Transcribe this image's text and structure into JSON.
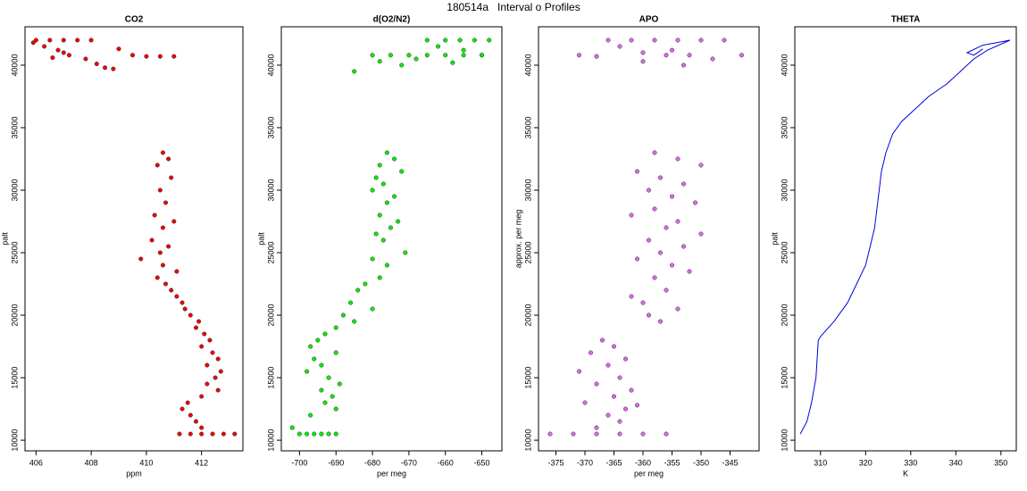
{
  "title": "180514a   Interval o Profiles",
  "chart_data": [
    {
      "type": "scatter",
      "title": "CO2",
      "xlabel": "ppm",
      "ylabel": "palt",
      "color": "#ee0000",
      "x": [
        406,
        406.5,
        407,
        407.5,
        408,
        405.9,
        406.3,
        406.8,
        407.2,
        407.8,
        408.2,
        408.5,
        408.8,
        409,
        409.5,
        410,
        410.5,
        411,
        407,
        406.6,
        410.6,
        410.8,
        410.4,
        410.9,
        410.5,
        410.7,
        410.3,
        411.0,
        410.6,
        410.2,
        410.8,
        410.5,
        409.8,
        410.6,
        411.1,
        410.4,
        410.7,
        410.9,
        411.1,
        411.3,
        411.4,
        411.6,
        411.9,
        411.8,
        412.1,
        412.3,
        412.0,
        412.4,
        412.6,
        412.2,
        412.7,
        412.5,
        412.2,
        412.6,
        412.0,
        411.5,
        411.3,
        411.6,
        411.8,
        412.0,
        411.2,
        411.6,
        412.0,
        412.4,
        412.8,
        413.2
      ],
      "y": [
        42000,
        42000,
        42000,
        42000,
        42000,
        41800,
        41500,
        41200,
        40800,
        40500,
        40100,
        39800,
        39700,
        41300,
        40800,
        40700,
        40700,
        40700,
        41000,
        40600,
        33000,
        32500,
        32000,
        31000,
        30000,
        29000,
        28000,
        27500,
        27000,
        26000,
        25500,
        25000,
        24500,
        24000,
        23500,
        23000,
        22500,
        22000,
        21500,
        21000,
        20500,
        20000,
        19500,
        19000,
        18500,
        18000,
        17500,
        17000,
        16500,
        16000,
        15500,
        15000,
        14500,
        14000,
        13500,
        13000,
        12500,
        12000,
        11500,
        11000,
        10500,
        10500,
        10500,
        10500,
        10500,
        10500
      ],
      "xlim": [
        405.6,
        413.5
      ],
      "ylim": [
        9150,
        43070
      ],
      "xticks": [
        406,
        408,
        410,
        412
      ],
      "yticks": [
        10000,
        15000,
        20000,
        25000,
        30000,
        35000,
        40000
      ]
    },
    {
      "type": "scatter",
      "title": "d(O2/N2)",
      "xlabel": "per meg",
      "ylabel": "palt",
      "color": "#00ee00",
      "x": [
        -665,
        -660,
        -656,
        -652,
        -648,
        -662,
        -655,
        -650,
        -680,
        -675,
        -670,
        -665,
        -660,
        -655,
        -650,
        -678,
        -672,
        -668,
        -658,
        -685,
        -676,
        -674,
        -678,
        -672,
        -679,
        -677,
        -680,
        -674,
        -676,
        -678,
        -673,
        -675,
        -679,
        -677,
        -671,
        -680,
        -676,
        -678,
        -682,
        -684,
        -686,
        -680,
        -688,
        -685,
        -690,
        -693,
        -695,
        -697,
        -690,
        -696,
        -694,
        -698,
        -692,
        -689,
        -694,
        -691,
        -693,
        -690,
        -697,
        -702,
        -700,
        -698,
        -696,
        -694,
        -692,
        -690
      ],
      "y": [
        42000,
        42000,
        42000,
        42000,
        42000,
        41500,
        41200,
        40800,
        40800,
        40800,
        40800,
        40800,
        40800,
        40800,
        40800,
        40300,
        40000,
        40500,
        40200,
        39500,
        33000,
        32500,
        32000,
        31500,
        31000,
        30500,
        30000,
        29500,
        29000,
        28000,
        27500,
        27000,
        26500,
        26000,
        25000,
        24500,
        24000,
        23000,
        22500,
        22000,
        21000,
        20500,
        20000,
        19500,
        19000,
        18500,
        18000,
        17500,
        17000,
        16500,
        16000,
        15500,
        15000,
        14500,
        14000,
        13500,
        13000,
        12500,
        12000,
        11000,
        10500,
        10500,
        10500,
        10500,
        10500,
        10500
      ],
      "xlim": [
        -705,
        -644.5
      ],
      "ylim": [
        9150,
        43070
      ],
      "xticks": [
        -700,
        -690,
        -680,
        -670,
        -660,
        -650
      ],
      "yticks": [
        10000,
        15000,
        20000,
        25000,
        30000,
        35000,
        40000
      ]
    },
    {
      "type": "scatter",
      "title": "APO",
      "xlabel": "per meg",
      "ylabel": "approx. per meg",
      "color": "#dd66ee",
      "x": [
        -366,
        -362,
        -358,
        -354,
        -350,
        -346,
        -364,
        -360,
        -356,
        -352,
        -348,
        -371,
        -368,
        -355,
        -360,
        -353,
        -343,
        -358,
        -354,
        -350,
        -361,
        -357,
        -353,
        -359,
        -355,
        -351,
        -358,
        -362,
        -354,
        -356,
        -350,
        -359,
        -353,
        -357,
        -361,
        -355,
        -352,
        -358,
        -356,
        -362,
        -360,
        -354,
        -359,
        -357,
        -367,
        -365,
        -369,
        -363,
        -366,
        -371,
        -364,
        -368,
        -362,
        -365,
        -370,
        -363,
        -366,
        -364,
        -368,
        -361,
        -376,
        -372,
        -368,
        -364,
        -360,
        -356
      ],
      "y": [
        42000,
        42000,
        42000,
        42000,
        42000,
        42000,
        41500,
        41000,
        40800,
        40800,
        40500,
        40800,
        40700,
        41200,
        40300,
        40000,
        40800,
        33000,
        32500,
        32000,
        31500,
        31000,
        30500,
        30000,
        29500,
        29000,
        28500,
        28000,
        27500,
        27000,
        26500,
        26000,
        25500,
        25000,
        24500,
        24000,
        23500,
        23000,
        22000,
        21500,
        21000,
        20500,
        20000,
        19500,
        18000,
        17500,
        17000,
        16500,
        16000,
        15500,
        15000,
        14500,
        14000,
        13500,
        13000,
        12500,
        12000,
        11500,
        11000,
        12800,
        10500,
        10500,
        10500,
        10500,
        10500,
        10500
      ],
      "xlim": [
        -378,
        -340
      ],
      "ylim": [
        9150,
        43070
      ],
      "xticks": [
        -375,
        -370,
        -365,
        -360,
        -355,
        -350,
        -345
      ],
      "yticks": [
        10000,
        15000,
        20000,
        25000,
        30000,
        35000,
        40000
      ]
    },
    {
      "type": "line",
      "title": "THETA",
      "xlabel": "K",
      "ylabel": "palt",
      "color": "#0000dd",
      "x": [
        305.5,
        307,
        308,
        309,
        309.5,
        310,
        313,
        316,
        318,
        320,
        321,
        322,
        322.5,
        323,
        323.5,
        324.5,
        326,
        328,
        331,
        334,
        338,
        341,
        344,
        347,
        352,
        346,
        342.5,
        344,
        346
      ],
      "y": [
        10500,
        11500,
        13000,
        15000,
        18000,
        18300,
        19500,
        21000,
        22500,
        24000,
        25500,
        27000,
        28500,
        30000,
        31500,
        33000,
        34500,
        35500,
        36500,
        37500,
        38500,
        39500,
        40500,
        41200,
        42000,
        41600,
        41000,
        40800,
        41300
      ],
      "xlim": [
        304.3,
        353.4
      ],
      "ylim": [
        9150,
        43070
      ],
      "xticks": [
        310,
        320,
        330,
        340,
        350
      ],
      "yticks": [
        10000,
        15000,
        20000,
        25000,
        30000,
        35000,
        40000
      ]
    }
  ]
}
